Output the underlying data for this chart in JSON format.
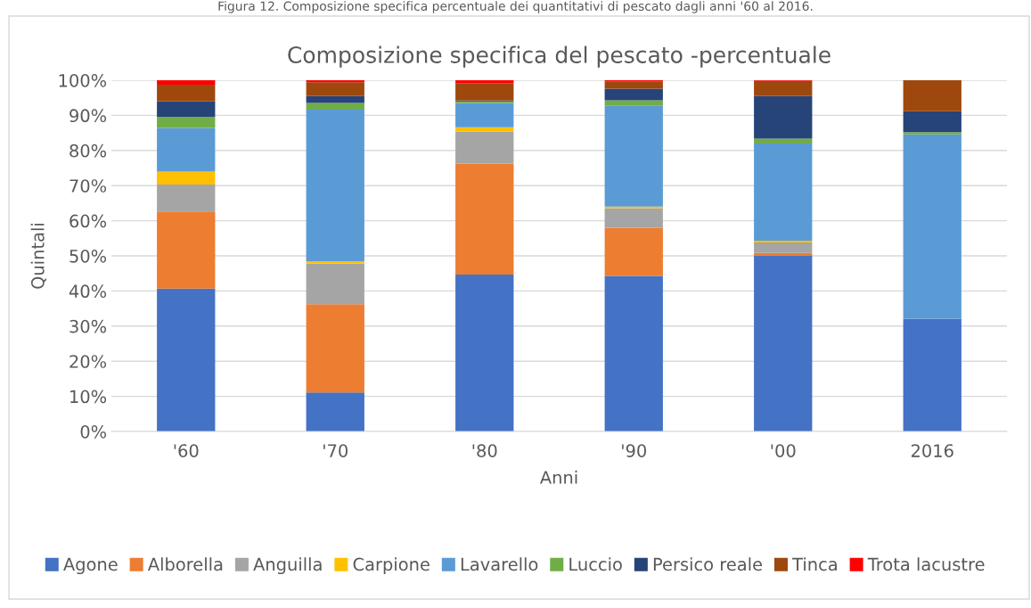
{
  "chart_data": {
    "type": "bar",
    "stacked": true,
    "title": "Composizione specifica del pescato -percentuale",
    "xlabel": "Anni",
    "ylabel": "Quintali",
    "annotations": [
      "Figura 12. Composizione specifica percentuale dei quantitativi di pescato dagli anni '60 al 2016."
    ],
    "categories": [
      "'60",
      "'70",
      "'80",
      "'90",
      "'00",
      "2016"
    ],
    "series": [
      {
        "name": "Agone",
        "color": "#4472c4",
        "values": [
          40.7,
          11.1,
          44.7,
          44.3,
          50.0,
          32.1
        ]
      },
      {
        "name": "Alborella",
        "color": "#ed7d31",
        "values": [
          21.9,
          25.1,
          31.6,
          13.7,
          0.8,
          0
        ]
      },
      {
        "name": "Anguilla",
        "color": "#a5a5a5",
        "values": [
          7.7,
          11.6,
          9.1,
          5.6,
          3.0,
          0
        ]
      },
      {
        "name": "Carpione",
        "color": "#ffc000",
        "values": [
          3.7,
          0.6,
          1.2,
          0.4,
          0.5,
          0
        ]
      },
      {
        "name": "Lavarello",
        "color": "#5b9bd5",
        "values": [
          12.4,
          43.2,
          6.9,
          28.7,
          27.7,
          52.5
        ]
      },
      {
        "name": "Luccio",
        "color": "#70ad47",
        "values": [
          3.1,
          1.9,
          0.5,
          1.6,
          1.4,
          0.6
        ]
      },
      {
        "name": "Persico reale",
        "color": "#264478",
        "values": [
          4.5,
          2.0,
          0.2,
          3.3,
          12.1,
          6.0
        ]
      },
      {
        "name": "Tinca",
        "color": "#9e480e",
        "values": [
          4.7,
          3.9,
          5.0,
          2.1,
          4.3,
          8.8
        ]
      },
      {
        "name": "Trota lacustre",
        "color": "#ff0000",
        "values": [
          1.3,
          0.6,
          0.8,
          0.3,
          0.2,
          0
        ]
      }
    ],
    "ylim": [
      0,
      100
    ],
    "yticks": [
      {
        "value": 0,
        "label": "0%"
      },
      {
        "value": 10,
        "label": "10%"
      },
      {
        "value": 20,
        "label": "20%"
      },
      {
        "value": 30,
        "label": "30%"
      },
      {
        "value": 40,
        "label": "40%"
      },
      {
        "value": 50,
        "label": "50%"
      },
      {
        "value": 60,
        "label": "60%"
      },
      {
        "value": 70,
        "label": "70%"
      },
      {
        "value": 80,
        "label": "80%"
      },
      {
        "value": 90,
        "label": "90%"
      },
      {
        "value": 100,
        "label": "100%"
      }
    ],
    "grid": "y",
    "legend": "bottom"
  }
}
